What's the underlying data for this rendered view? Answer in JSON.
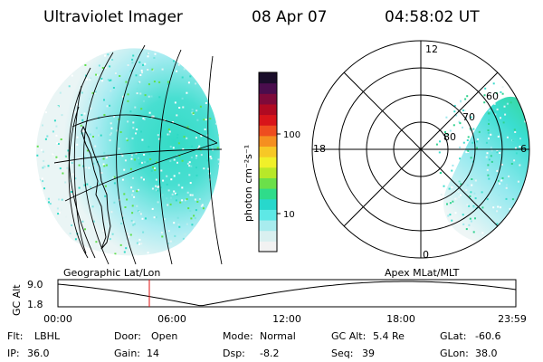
{
  "header": {
    "title": "Ultraviolet Imager",
    "date": "08 Apr 07",
    "time": "04:58:02 UT"
  },
  "geo_panel": {
    "label": "Geographic Lat/Lon"
  },
  "polar_panel": {
    "label": "Apex MLat/MLT",
    "mlt_labels": [
      "12",
      "18",
      "6",
      "0"
    ],
    "mlat_labels": [
      "60",
      "70",
      "80"
    ]
  },
  "colorbar": {
    "label": "photon cm⁻²s⁻¹",
    "ticks": [
      "100",
      "10"
    ],
    "colors": [
      "#f2f2f2",
      "#d9f0f0",
      "#a8ecee",
      "#5ee8e6",
      "#27d8cc",
      "#2fdc8a",
      "#6be04a",
      "#b8e829",
      "#f0f02a",
      "#f7c826",
      "#f58f20",
      "#ee4d1f",
      "#d8151a",
      "#b00a22",
      "#7e0a3a",
      "#4a0d4d",
      "#1a0d2a"
    ]
  },
  "altitude_plot": {
    "ylabel": "GC Alt",
    "y_ticks": [
      "9.0",
      "1.8"
    ],
    "x_ticks": [
      "00:00",
      "06:00",
      "12:00",
      "18:00",
      "23:59"
    ],
    "marker_time": "04:58"
  },
  "status": {
    "row1": [
      {
        "label": "Flt:",
        "value": "LBHL"
      },
      {
        "label": "Door:",
        "value": "Open"
      },
      {
        "label": "Mode:",
        "value": "Normal"
      },
      {
        "label": "GC Alt:",
        "value": "5.4 Re"
      },
      {
        "label": "GLat:",
        "value": "-60.6"
      }
    ],
    "row2": [
      {
        "label": "IP:",
        "value": "36.0"
      },
      {
        "label": "Gain:",
        "value": "14"
      },
      {
        "label": "Dsp:",
        "value": "-8.2"
      },
      {
        "label": "Seq:",
        "value": "39"
      },
      {
        "label": "GLon:",
        "value": "38.0"
      }
    ]
  }
}
